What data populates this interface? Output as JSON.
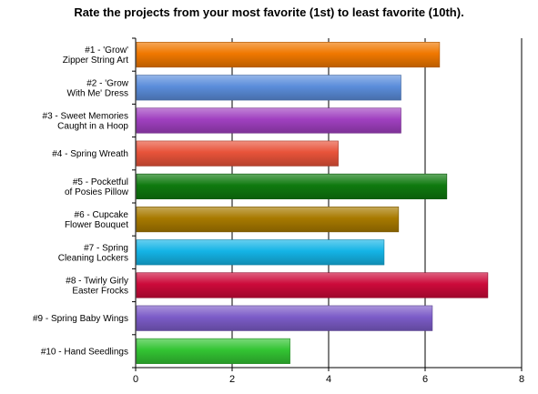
{
  "chart_data": {
    "type": "bar",
    "orientation": "horizontal",
    "title": "Rate the projects from your most favorite (1st) to least favorite (10th).",
    "xlabel": "",
    "ylabel": "",
    "xlim": [
      0,
      8
    ],
    "xticks": [
      0,
      2,
      4,
      6,
      8
    ],
    "grid": true,
    "legend": "none",
    "categories": [
      [
        "#1 - 'Grow'",
        "Zipper String Art"
      ],
      [
        "#2 - 'Grow",
        "With Me' Dress"
      ],
      [
        "#3 - Sweet Memories",
        "Caught in a Hoop"
      ],
      [
        "#4 - Spring Wreath"
      ],
      [
        "#5 - Pocketful",
        "of Posies Pillow"
      ],
      [
        "#6 - Cupcake",
        "Flower Bouquet"
      ],
      [
        "#7  - Spring",
        "Cleaning Lockers"
      ],
      [
        "#8 - Twirly Girly",
        "Easter Frocks"
      ],
      [
        "#9 - Spring Baby Wings"
      ],
      [
        "#10 - Hand Seedlings"
      ]
    ],
    "values": [
      6.3,
      5.5,
      5.5,
      4.2,
      6.45,
      5.45,
      5.15,
      7.3,
      6.15,
      3.2
    ],
    "colors": [
      "#f07800",
      "#5b8ddb",
      "#a040c0",
      "#e8533a",
      "#0f7a0f",
      "#a87a00",
      "#14b4e6",
      "#cc0a3a",
      "#7c5cc8",
      "#33c433"
    ]
  }
}
